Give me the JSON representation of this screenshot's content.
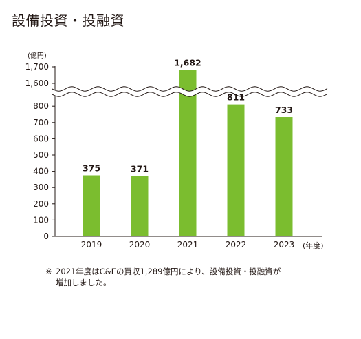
{
  "title": "設備投資・投融資",
  "y_unit": "(億円)",
  "x_unit": "(年度)",
  "note": {
    "mark": "※",
    "text": "2021年度はC&Eの買収1,289億円により、設備投資・投融資が増加しました。"
  },
  "colors": {
    "bar": "#7bbd2f",
    "axis": "#231815"
  },
  "chart_data": {
    "type": "bar",
    "categories": [
      "2019",
      "2020",
      "2021",
      "2022",
      "2023"
    ],
    "values": [
      375,
      371,
      1682,
      811,
      733
    ],
    "data_labels": [
      "375",
      "371",
      "1,682",
      "811",
      "733"
    ],
    "y_ticks_lower": [
      "0",
      "100",
      "200",
      "300",
      "400",
      "500",
      "600",
      "700",
      "800"
    ],
    "y_ticks_upper": [
      "1,600",
      "1,700"
    ],
    "ylim_lower": [
      0,
      850
    ],
    "ylim_upper": [
      1590,
      1700
    ],
    "axis_break": "wavy",
    "xlabel": "",
    "ylabel": ""
  }
}
